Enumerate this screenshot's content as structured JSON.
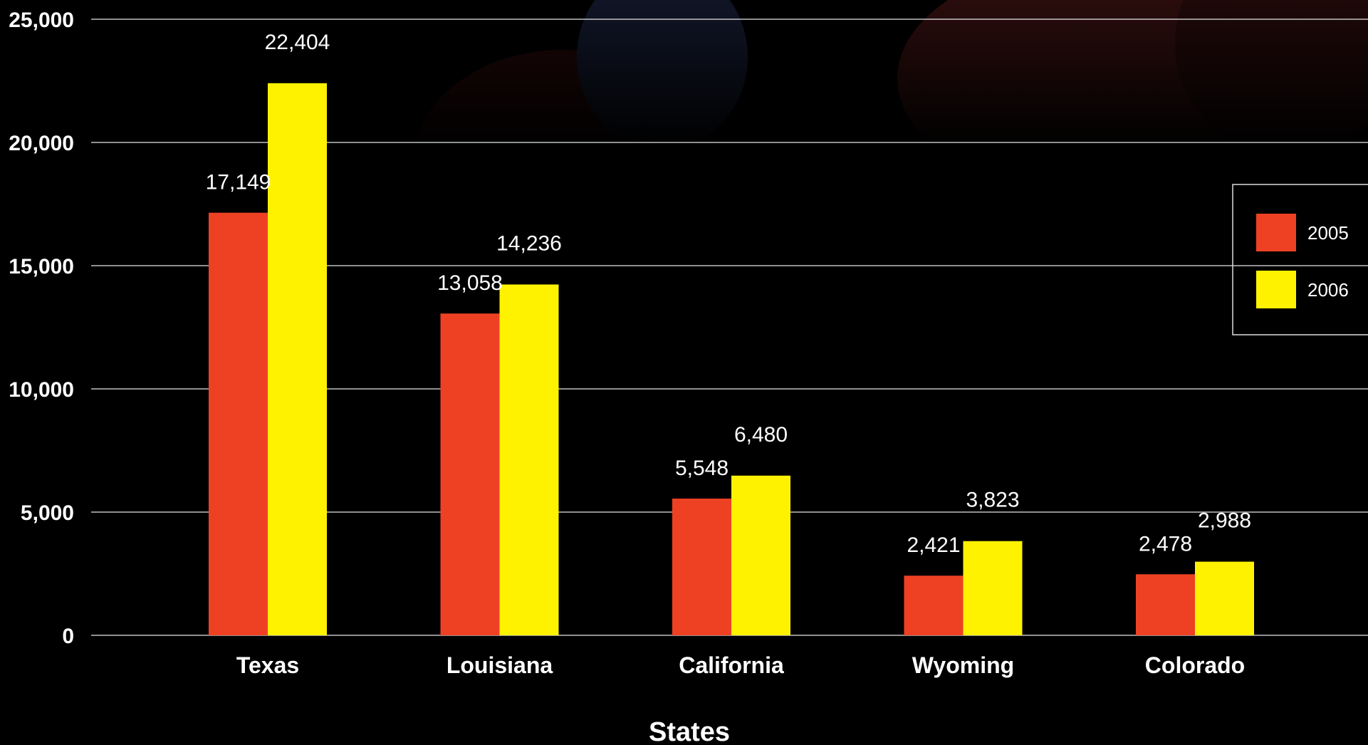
{
  "chart_data": {
    "type": "bar",
    "title": "",
    "xlabel": "States",
    "ylabel": "",
    "ylim": [
      0,
      25000
    ],
    "yticks": [
      0,
      5000,
      10000,
      15000,
      20000,
      25000
    ],
    "ytick_labels": [
      "0",
      "5,000",
      "10,000",
      "15,000",
      "20,000",
      "25,000"
    ],
    "grid": "horizontal",
    "legend": "right",
    "categories": [
      "Texas",
      "Louisiana",
      "California",
      "Wyoming",
      "Colorado"
    ],
    "series": [
      {
        "name": "2005",
        "color": "#EE4123",
        "values": [
          17149,
          13058,
          5548,
          2421,
          2478
        ],
        "labels": [
          "17,149",
          "13,058",
          "5,548",
          "2,421",
          "2,478"
        ]
      },
      {
        "name": "2006",
        "color": "#FFF200",
        "values": [
          22404,
          14236,
          6480,
          3823,
          2988
        ],
        "labels": [
          "22,404",
          "14,236",
          "6,480",
          "3,823",
          "2,988"
        ]
      }
    ]
  }
}
